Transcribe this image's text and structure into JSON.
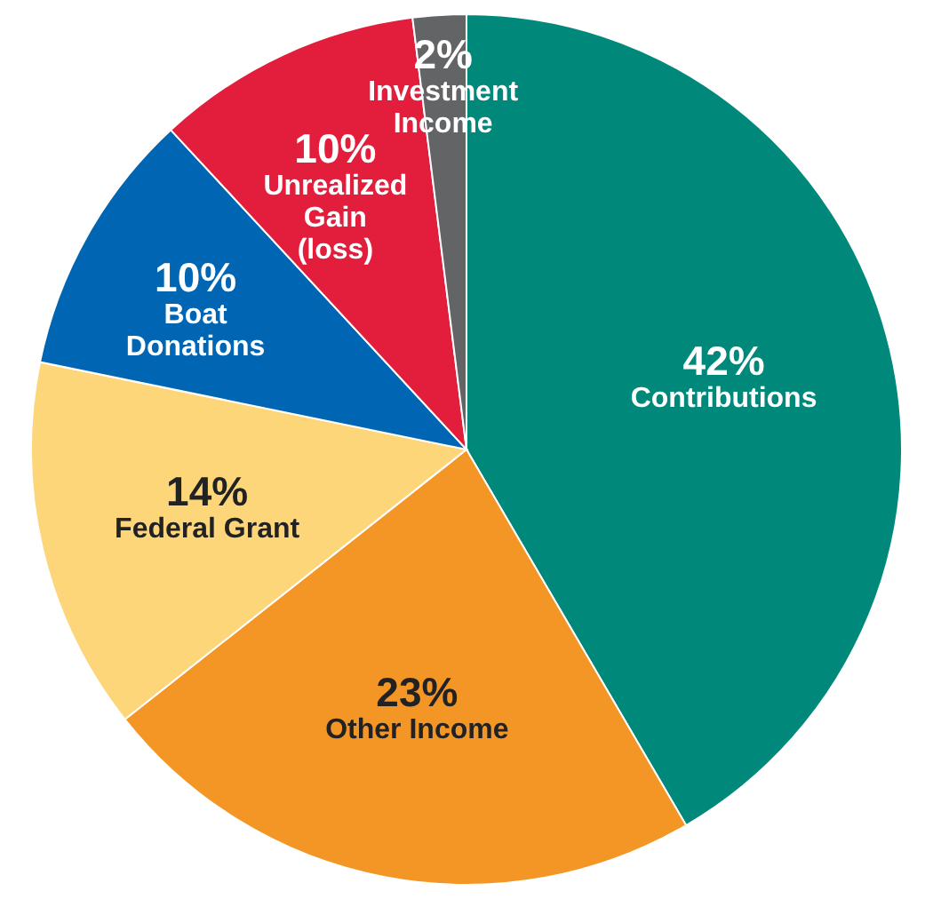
{
  "chart_data": {
    "type": "pie",
    "categories": [
      "Contributions",
      "Other Income",
      "Federal Grant",
      "Boat\nDonations",
      "Unrealized\nGain\n(loss)",
      "Investment\nIncome"
    ],
    "values": [
      42,
      23,
      14,
      10,
      10,
      2
    ],
    "value_labels": [
      "42%",
      "23%",
      "14%",
      "10%",
      "10%",
      "2%"
    ],
    "colors": [
      "#00897b",
      "#f39626",
      "#fdd67a",
      "#0066b3",
      "#e31e3c",
      "#636466"
    ],
    "legend": false
  }
}
